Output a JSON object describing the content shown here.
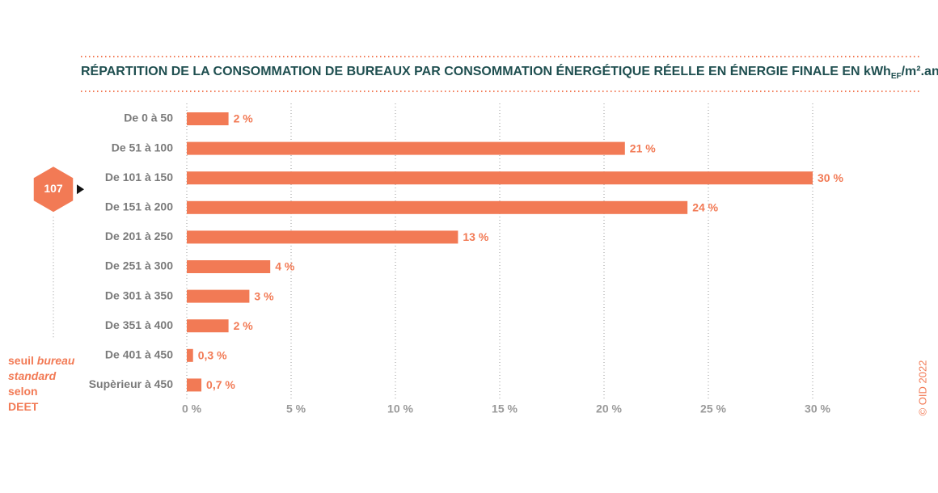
{
  "chart_data": {
    "type": "bar",
    "orientation": "horizontal",
    "title": "RÉPARTITION DE LA CONSOMMATION DE BUREAUX PAR CONSOMMATION ÉNERGÉTIQUE RÉELLE EN ÉNERGIE FINALE EN kWh",
    "title_subscript": "EF",
    "title_end": "/m².an",
    "categories": [
      "De 0 à 50",
      "De 51 à 100",
      "De 101 à 150",
      "De 151 à 200",
      "De 201 à 250",
      "De 251 à 300",
      "De 301 à 350",
      "De 351 à 400",
      "De 401 à 450",
      "Supèrieur à 450"
    ],
    "values": [
      2,
      21,
      30,
      24,
      13,
      4,
      3,
      2,
      0.3,
      0.7
    ],
    "value_labels": [
      "2 %",
      "21 %",
      "30 %",
      "24 %",
      "13 %",
      "4 %",
      "3 %",
      "2 %",
      "0,3 %",
      "0,7 %"
    ],
    "color": "#f27a55",
    "xlim": [
      0,
      30
    ],
    "xticks": [
      {
        "value": 0,
        "label": "0 %"
      },
      {
        "value": 5,
        "label": "5 %"
      },
      {
        "value": 10,
        "label": "10 %"
      },
      {
        "value": 15,
        "label": "15 %"
      },
      {
        "value": 20,
        "label": "20 %"
      },
      {
        "value": 25,
        "label": "25 %"
      },
      {
        "value": 30,
        "label": "30 %"
      }
    ],
    "grid": true,
    "annotation": {
      "marker": "107",
      "category_index": 2,
      "note_lines": [
        [
          "seuil ",
          "bureau"
        ],
        [
          "standard"
        ],
        [
          "selon"
        ],
        [
          "DEET"
        ]
      ]
    },
    "credit": "© OID 2022"
  }
}
